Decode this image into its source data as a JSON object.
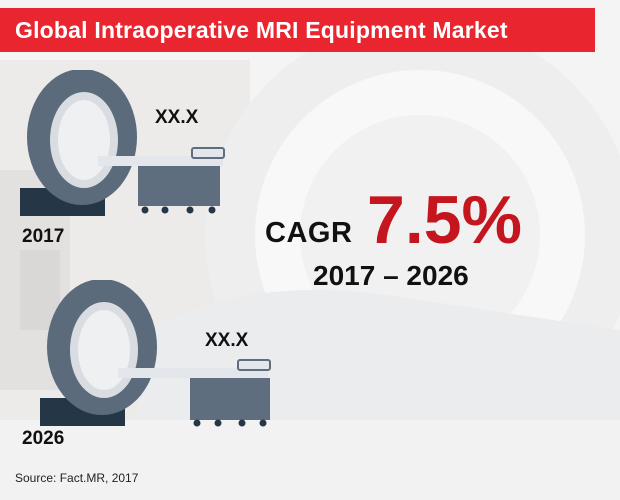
{
  "header": {
    "title": "Global Intraoperative MRI Equipment Market"
  },
  "equipment": [
    {
      "year": "2017",
      "value": "XX.X"
    },
    {
      "year": "2026",
      "value": "XX.X"
    }
  ],
  "cagr": {
    "label": "CAGR",
    "value": "7.5%",
    "period": "2017 – 2026"
  },
  "footer": {
    "source": "Source: Fact.MR, 2017"
  },
  "colors": {
    "title_bar": "#e9262f",
    "cagr_value": "#c5161f",
    "scanner_ring": "#5b6b7c",
    "scanner_base": "#253747",
    "table": "#5e6e7e"
  },
  "icons": [
    "mri-scanner-icon-2017",
    "mri-scanner-icon-2026",
    "background-mri-photo"
  ]
}
